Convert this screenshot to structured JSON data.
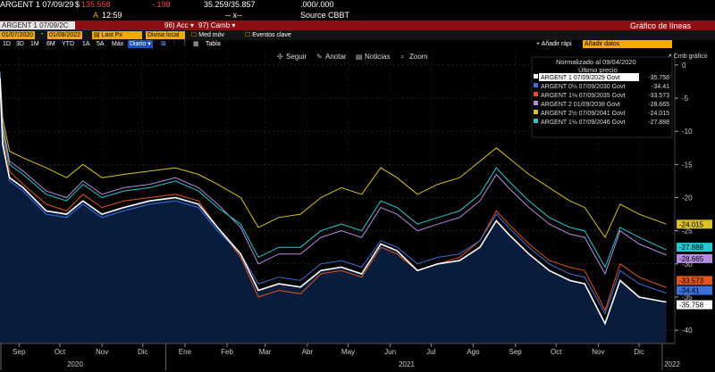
{
  "header": {
    "ticker": "ARGENT 1 07/09/29",
    "dollar": "$",
    "price": "135.558",
    "change": "-.198",
    "bidask": "35.259/35.857",
    "sizes": ".000/.000",
    "time_prefix": "A",
    "time": "12:59",
    "dashes": "-- x--",
    "source": "Source CBBT"
  },
  "toolbar": {
    "security_field": "ARGENT 1 07/09/2C",
    "acc_label": "Acc",
    "camb_label": "Camb",
    "title": "Gráfico de líneas",
    "from_date": "01/07/2020",
    "to_date": "01/08/2022",
    "field": "Last Px",
    "currency": "Divisa local",
    "med_mov": "Med móv",
    "eventos": "Eventos clave",
    "ranges": [
      "1D",
      "3D",
      "1M",
      "6M",
      "YTD",
      "1A",
      "5A",
      "Máx"
    ],
    "freq": "Diario",
    "tabla": "Tabla",
    "add_rapid": "Añadir rápi",
    "add_data": "Añadir datos",
    "cmb_grafico": "Cmb gráfico"
  },
  "chart_tools": {
    "seguir": "Seguir",
    "anotar": "Anotar",
    "noticias": "Noticias",
    "zoom": "Zoom"
  },
  "legend": {
    "title": "Normalizado al 09/04/2020",
    "subtitle": "Último precio",
    "items": [
      {
        "label": "ARGENT 1 07/09/2029 Govt",
        "value": "-35.758",
        "color": "#ffffff"
      },
      {
        "label": "ARGENT 0½ 07/09/2030 Govt",
        "value": "-34.41",
        "color": "#3d6fd8"
      },
      {
        "label": "ARGENT 1⅛ 07/09/2035 Govt",
        "value": "-33.573",
        "color": "#e0551e"
      },
      {
        "label": "ARGENT 2 01/09/2038 Govt",
        "value": "-28.665",
        "color": "#b58be0"
      },
      {
        "label": "ARGENT 2½ 07/09/2041 Govt",
        "value": "-24.015",
        "color": "#d8c228"
      },
      {
        "label": "ARGENT 1⅛ 07/09/2046 Govt",
        "value": "-27.888",
        "color": "#27c9cf"
      }
    ]
  },
  "colors": {
    "accent": "#f2a900",
    "toolbar_red": "#8b0f13",
    "plot_fill": "#0b1d3f"
  },
  "chart_data": {
    "type": "line",
    "x_ticks": [
      "Sep",
      "Oct",
      "Nov",
      "Dic",
      "Ene",
      "Feb",
      "Mar",
      "Abr",
      "May",
      "Jun",
      "Jul",
      "Ago",
      "Sep",
      "Oct",
      "Nov",
      "Dic"
    ],
    "years": [
      "2020",
      "2021",
      "2022"
    ],
    "y_ticks": [
      0,
      -5,
      -10,
      -15,
      -20,
      -25,
      -30,
      -35,
      -40
    ],
    "ylim": [
      -42,
      2
    ],
    "x_range": [
      "2020-09-01",
      "2022-01-05"
    ],
    "series": [
      {
        "name": "ARGENT 1 07/09/2029 Govt",
        "color": "#ffffff",
        "last": -35.758,
        "points": [
          [
            "2020-09-01",
            -2
          ],
          [
            "2020-09-03",
            -12
          ],
          [
            "2020-09-08",
            -17
          ],
          [
            "2020-09-18",
            -18.5
          ],
          [
            "2020-10-05",
            -22
          ],
          [
            "2020-10-20",
            -22.5
          ],
          [
            "2020-11-01",
            -20.5
          ],
          [
            "2020-11-15",
            -22.5
          ],
          [
            "2020-12-01",
            -21.5
          ],
          [
            "2020-12-20",
            -20.5
          ],
          [
            "2021-01-08",
            -20
          ],
          [
            "2021-01-25",
            -21
          ],
          [
            "2021-02-08",
            -24.5
          ],
          [
            "2021-02-25",
            -28.5
          ],
          [
            "2021-03-10",
            -34
          ],
          [
            "2021-03-25",
            -33
          ],
          [
            "2021-04-10",
            -33.5
          ],
          [
            "2021-04-25",
            -31
          ],
          [
            "2021-05-10",
            -30.5
          ],
          [
            "2021-05-25",
            -31.5
          ],
          [
            "2021-06-08",
            -27
          ],
          [
            "2021-06-20",
            -28
          ],
          [
            "2021-07-05",
            -31
          ],
          [
            "2021-07-20",
            -30
          ],
          [
            "2021-08-05",
            -29.5
          ],
          [
            "2021-08-20",
            -27.5
          ],
          [
            "2021-09-01",
            -23.5
          ],
          [
            "2021-09-10",
            -25.5
          ],
          [
            "2021-09-25",
            -28.5
          ],
          [
            "2021-10-10",
            -31
          ],
          [
            "2021-10-25",
            -32.5
          ],
          [
            "2021-11-05",
            -33
          ],
          [
            "2021-11-20",
            -39
          ],
          [
            "2021-12-01",
            -32.5
          ],
          [
            "2021-12-15",
            -35
          ],
          [
            "2022-01-04",
            -35.758
          ]
        ]
      },
      {
        "name": "ARGENT 0½ 07/09/2030 Govt",
        "color": "#3d6fd8",
        "last": -34.41,
        "points": [
          [
            "2020-09-01",
            -1
          ],
          [
            "2020-09-03",
            -11
          ],
          [
            "2020-09-08",
            -17.5
          ],
          [
            "2020-09-18",
            -19
          ],
          [
            "2020-10-05",
            -22.5
          ],
          [
            "2020-10-20",
            -23
          ],
          [
            "2020-11-01",
            -21
          ],
          [
            "2020-11-15",
            -23
          ],
          [
            "2020-12-01",
            -22
          ],
          [
            "2020-12-20",
            -21
          ],
          [
            "2021-01-08",
            -20.5
          ],
          [
            "2021-01-25",
            -21.5
          ],
          [
            "2021-02-08",
            -25
          ],
          [
            "2021-02-25",
            -28.5
          ],
          [
            "2021-03-10",
            -33
          ],
          [
            "2021-03-25",
            -32
          ],
          [
            "2021-04-10",
            -32.5
          ],
          [
            "2021-04-25",
            -30
          ],
          [
            "2021-05-10",
            -29.5
          ],
          [
            "2021-05-25",
            -30.5
          ],
          [
            "2021-06-08",
            -26.5
          ],
          [
            "2021-06-20",
            -27.5
          ],
          [
            "2021-07-05",
            -30
          ],
          [
            "2021-07-20",
            -29
          ],
          [
            "2021-08-05",
            -28.5
          ],
          [
            "2021-08-20",
            -26.5
          ],
          [
            "2021-09-01",
            -22.5
          ],
          [
            "2021-09-10",
            -24.5
          ],
          [
            "2021-09-25",
            -27.5
          ],
          [
            "2021-10-10",
            -30
          ],
          [
            "2021-10-25",
            -31.5
          ],
          [
            "2021-11-05",
            -32
          ],
          [
            "2021-11-20",
            -37.5
          ],
          [
            "2021-12-01",
            -31
          ],
          [
            "2021-12-15",
            -33
          ],
          [
            "2022-01-04",
            -34.41
          ]
        ]
      },
      {
        "name": "ARGENT 1⅛ 07/09/2035 Govt",
        "color": "#e0551e",
        "last": -33.573,
        "points": [
          [
            "2020-09-01",
            -1.5
          ],
          [
            "2020-09-03",
            -10
          ],
          [
            "2020-09-08",
            -16
          ],
          [
            "2020-09-18",
            -18
          ],
          [
            "2020-10-05",
            -21
          ],
          [
            "2020-10-20",
            -22
          ],
          [
            "2020-11-01",
            -19.5
          ],
          [
            "2020-11-15",
            -21.5
          ],
          [
            "2020-12-01",
            -20.5
          ],
          [
            "2020-12-20",
            -20
          ],
          [
            "2021-01-08",
            -19.5
          ],
          [
            "2021-01-25",
            -20.5
          ],
          [
            "2021-02-08",
            -24.5
          ],
          [
            "2021-02-25",
            -29
          ],
          [
            "2021-03-10",
            -35
          ],
          [
            "2021-03-25",
            -34
          ],
          [
            "2021-04-10",
            -34.5
          ],
          [
            "2021-04-25",
            -31.5
          ],
          [
            "2021-05-10",
            -31
          ],
          [
            "2021-05-25",
            -32
          ],
          [
            "2021-06-08",
            -27.5
          ],
          [
            "2021-06-20",
            -28.5
          ],
          [
            "2021-07-05",
            -31
          ],
          [
            "2021-07-20",
            -30
          ],
          [
            "2021-08-05",
            -29
          ],
          [
            "2021-08-20",
            -26.5
          ],
          [
            "2021-09-01",
            -22
          ],
          [
            "2021-09-10",
            -24
          ],
          [
            "2021-09-25",
            -27
          ],
          [
            "2021-10-10",
            -29.5
          ],
          [
            "2021-10-25",
            -30.5
          ],
          [
            "2021-11-05",
            -31
          ],
          [
            "2021-11-20",
            -37
          ],
          [
            "2021-12-01",
            -30
          ],
          [
            "2021-12-15",
            -32
          ],
          [
            "2022-01-04",
            -33.573
          ]
        ]
      },
      {
        "name": "ARGENT 2 01/09/2038 Govt",
        "color": "#b58be0",
        "last": -28.665,
        "points": [
          [
            "2020-09-01",
            -2
          ],
          [
            "2020-09-03",
            -9
          ],
          [
            "2020-09-08",
            -14.5
          ],
          [
            "2020-09-18",
            -16
          ],
          [
            "2020-10-05",
            -19
          ],
          [
            "2020-10-20",
            -20
          ],
          [
            "2020-11-01",
            -17.5
          ],
          [
            "2020-11-15",
            -19.5
          ],
          [
            "2020-12-01",
            -18.5
          ],
          [
            "2020-12-20",
            -18
          ],
          [
            "2021-01-08",
            -17
          ],
          [
            "2021-01-25",
            -18.5
          ],
          [
            "2021-02-08",
            -21
          ],
          [
            "2021-02-25",
            -24.5
          ],
          [
            "2021-03-10",
            -30
          ],
          [
            "2021-03-25",
            -28.5
          ],
          [
            "2021-04-10",
            -28.5
          ],
          [
            "2021-04-25",
            -26
          ],
          [
            "2021-05-10",
            -25
          ],
          [
            "2021-05-25",
            -26
          ],
          [
            "2021-06-08",
            -21.5
          ],
          [
            "2021-06-20",
            -22.5
          ],
          [
            "2021-07-05",
            -25
          ],
          [
            "2021-07-20",
            -24
          ],
          [
            "2021-08-05",
            -23
          ],
          [
            "2021-08-20",
            -20.5
          ],
          [
            "2021-09-01",
            -16.5
          ],
          [
            "2021-09-10",
            -18.5
          ],
          [
            "2021-09-25",
            -21.5
          ],
          [
            "2021-10-10",
            -24
          ],
          [
            "2021-10-25",
            -25.5
          ],
          [
            "2021-11-05",
            -26
          ],
          [
            "2021-11-20",
            -31.5
          ],
          [
            "2021-12-01",
            -25
          ],
          [
            "2021-12-15",
            -27
          ],
          [
            "2022-01-04",
            -28.665
          ]
        ]
      },
      {
        "name": "ARGENT 2½ 07/09/2041 Govt",
        "color": "#d8c228",
        "last": -24.015,
        "points": [
          [
            "2020-09-01",
            -1
          ],
          [
            "2020-09-03",
            -8
          ],
          [
            "2020-09-08",
            -13
          ],
          [
            "2020-09-18",
            -14
          ],
          [
            "2020-10-05",
            -15.5
          ],
          [
            "2020-10-20",
            -17
          ],
          [
            "2020-11-01",
            -15
          ],
          [
            "2020-11-15",
            -17
          ],
          [
            "2020-12-01",
            -16.5
          ],
          [
            "2020-12-20",
            -16
          ],
          [
            "2021-01-08",
            -15.5
          ],
          [
            "2021-01-25",
            -16.5
          ],
          [
            "2021-02-08",
            -18
          ],
          [
            "2021-02-25",
            -20
          ],
          [
            "2021-03-10",
            -24.5
          ],
          [
            "2021-03-25",
            -23
          ],
          [
            "2021-04-10",
            -22.5
          ],
          [
            "2021-04-25",
            -20
          ],
          [
            "2021-05-10",
            -18.5
          ],
          [
            "2021-05-25",
            -19.5
          ],
          [
            "2021-06-08",
            -15.5
          ],
          [
            "2021-06-20",
            -17
          ],
          [
            "2021-07-05",
            -19.5
          ],
          [
            "2021-07-20",
            -18
          ],
          [
            "2021-08-05",
            -17
          ],
          [
            "2021-08-20",
            -14.5
          ],
          [
            "2021-09-01",
            -12.5
          ],
          [
            "2021-09-10",
            -14
          ],
          [
            "2021-09-25",
            -16.5
          ],
          [
            "2021-10-10",
            -18.5
          ],
          [
            "2021-10-25",
            -20.5
          ],
          [
            "2021-11-05",
            -21.5
          ],
          [
            "2021-11-20",
            -26
          ],
          [
            "2021-12-01",
            -21
          ],
          [
            "2021-12-15",
            -22.5
          ],
          [
            "2022-01-04",
            -24.015
          ]
        ]
      },
      {
        "name": "ARGENT 1⅛ 07/09/2046 Govt",
        "color": "#27c9cf",
        "last": -27.888,
        "points": [
          [
            "2020-09-01",
            -1.2
          ],
          [
            "2020-09-03",
            -9.5
          ],
          [
            "2020-09-08",
            -15
          ],
          [
            "2020-09-18",
            -16.5
          ],
          [
            "2020-10-05",
            -19.5
          ],
          [
            "2020-10-20",
            -20.5
          ],
          [
            "2020-11-01",
            -18
          ],
          [
            "2020-11-15",
            -20
          ],
          [
            "2020-12-01",
            -19
          ],
          [
            "2020-12-20",
            -18.5
          ],
          [
            "2021-01-08",
            -17.5
          ],
          [
            "2021-01-25",
            -19
          ],
          [
            "2021-02-08",
            -21.5
          ],
          [
            "2021-02-25",
            -24
          ],
          [
            "2021-03-10",
            -29
          ],
          [
            "2021-03-25",
            -27.5
          ],
          [
            "2021-04-10",
            -27.5
          ],
          [
            "2021-04-25",
            -25
          ],
          [
            "2021-05-10",
            -24
          ],
          [
            "2021-05-25",
            -25
          ],
          [
            "2021-06-08",
            -20.5
          ],
          [
            "2021-06-20",
            -21.5
          ],
          [
            "2021-07-05",
            -24
          ],
          [
            "2021-07-20",
            -23
          ],
          [
            "2021-08-05",
            -22
          ],
          [
            "2021-08-20",
            -19.5
          ],
          [
            "2021-09-01",
            -15.5
          ],
          [
            "2021-09-10",
            -17.5
          ],
          [
            "2021-09-25",
            -20.5
          ],
          [
            "2021-10-10",
            -23
          ],
          [
            "2021-10-25",
            -24.5
          ],
          [
            "2021-11-05",
            -25
          ],
          [
            "2021-11-20",
            -30.5
          ],
          [
            "2021-12-01",
            -24.5
          ],
          [
            "2021-12-15",
            -26
          ],
          [
            "2022-01-04",
            -27.888
          ]
        ]
      }
    ],
    "grid": true,
    "legend_position": "top-right"
  }
}
